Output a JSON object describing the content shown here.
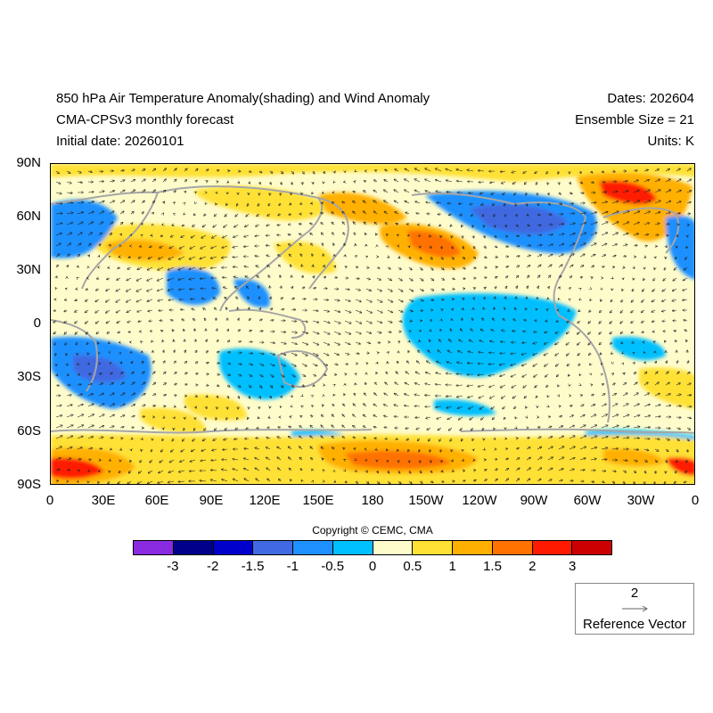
{
  "header": {
    "title": "850 hPa Air Temperature Anomaly(shading) and Wind Anomaly",
    "model": "CMA-CPSv3 monthly forecast",
    "initial_date": "Initial date: 20260101",
    "dates": "Dates: 202604",
    "ensemble": "Ensemble Size = 21",
    "units": "Units: K"
  },
  "map": {
    "lat_labels": [
      "90N",
      "60N",
      "30N",
      "0",
      "30S",
      "60S",
      "90S"
    ],
    "lon_labels": [
      "0",
      "30E",
      "60E",
      "90E",
      "120E",
      "150E",
      "180",
      "150W",
      "120W",
      "90W",
      "60W",
      "30W",
      "0"
    ],
    "lon_range": [
      0,
      360
    ],
    "lat_range": [
      -90,
      90
    ],
    "background_color": "#fffccc"
  },
  "colorbar": {
    "colors": [
      "#8a2be2",
      "#00008b",
      "#0000cd",
      "#4169e1",
      "#1e90ff",
      "#00bfff",
      "#fffccc",
      "#ffe135",
      "#ffb000",
      "#ff7200",
      "#ff1a00",
      "#cc0000"
    ],
    "labels": [
      "-3",
      "-2",
      "-1.5",
      "-1",
      "-0.5",
      "0",
      "0.5",
      "1",
      "1.5",
      "2",
      "3"
    ]
  },
  "copyright": "Copyright © CEMC, CMA",
  "reference_vector": {
    "magnitude": "2",
    "label": "Reference Vector"
  }
}
